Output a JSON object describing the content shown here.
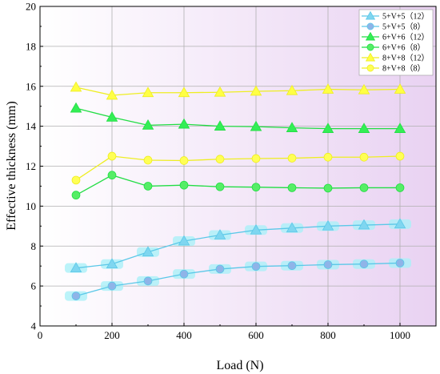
{
  "chart_data": {
    "type": "line",
    "xlabel": "Load (N)",
    "ylabel": "Effective thickness (mm)",
    "xlim": [
      0,
      1100
    ],
    "ylim": [
      4,
      20
    ],
    "xticks": [
      0,
      200,
      400,
      600,
      800,
      1000
    ],
    "yticks": [
      4,
      6,
      8,
      10,
      12,
      14,
      16,
      18,
      20
    ],
    "grid": true,
    "legend_position": "top-right",
    "x": [
      100,
      200,
      300,
      400,
      500,
      600,
      700,
      800,
      900,
      1000
    ],
    "series": [
      {
        "name": "5+V+5（12）",
        "marker": "triangle",
        "color": "#5bc8e8",
        "fill": "#7fd6f0",
        "glow": true,
        "values": [
          6.9,
          7.1,
          7.7,
          8.25,
          8.55,
          8.8,
          8.9,
          9.0,
          9.05,
          9.1
        ]
      },
      {
        "name": "5+V+5（8）",
        "marker": "circle",
        "color": "#5bc8e8",
        "fill": "#8fb4e8",
        "glow": true,
        "values": [
          5.5,
          6.0,
          6.25,
          6.6,
          6.85,
          6.98,
          7.02,
          7.07,
          7.1,
          7.15
        ]
      },
      {
        "name": "6+V+6（12）",
        "marker": "triangle",
        "color": "#22dd44",
        "fill": "#33ee55",
        "glow": false,
        "values": [
          14.9,
          14.45,
          14.05,
          14.1,
          14.0,
          13.98,
          13.92,
          13.88,
          13.88,
          13.88
        ]
      },
      {
        "name": "6+V+6（8）",
        "marker": "circle",
        "color": "#22dd44",
        "fill": "#55ee66",
        "glow": false,
        "values": [
          10.55,
          11.55,
          11.0,
          11.05,
          10.97,
          10.95,
          10.92,
          10.9,
          10.92,
          10.92
        ]
      },
      {
        "name": "8+V+8（12）",
        "marker": "triangle",
        "color": "#eeee22",
        "fill": "#ffff44",
        "glow": false,
        "values": [
          15.95,
          15.55,
          15.68,
          15.68,
          15.7,
          15.75,
          15.78,
          15.85,
          15.82,
          15.85
        ]
      },
      {
        "name": "8+V+8（8）",
        "marker": "circle",
        "color": "#eeee22",
        "fill": "#ffff55",
        "glow": false,
        "values": [
          11.3,
          12.5,
          12.3,
          12.28,
          12.35,
          12.38,
          12.4,
          12.45,
          12.45,
          12.5
        ]
      }
    ]
  },
  "colors": {
    "bg_left": "#ffffff",
    "bg_right": "#e9d2f2",
    "grid": "#b0b0b0",
    "glow": "#aaf0f8"
  }
}
